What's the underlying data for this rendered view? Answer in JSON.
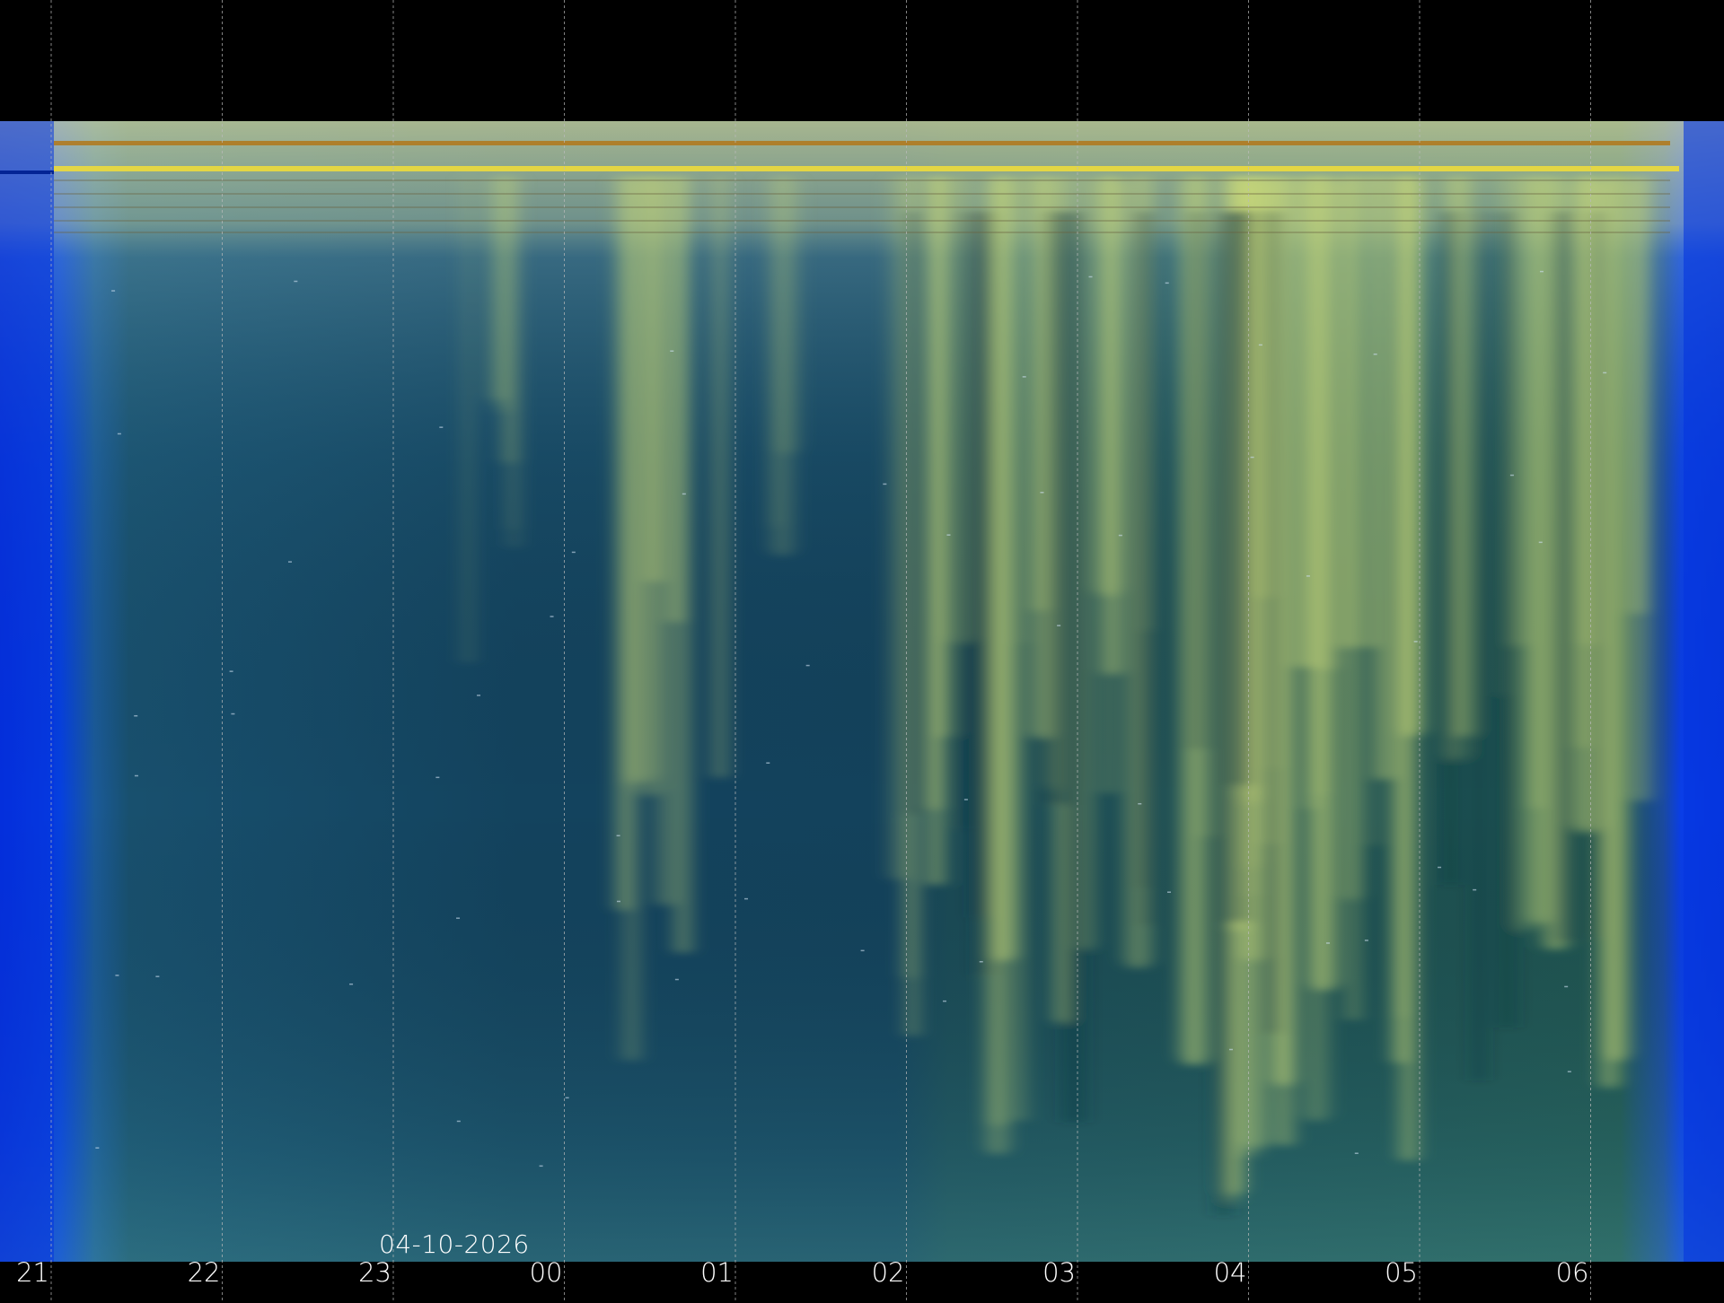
{
  "date_label": "04-10-2026",
  "hour_labels": [
    "21",
    "22",
    "23",
    "00",
    "01",
    "02",
    "03",
    "04",
    "05",
    "06"
  ],
  "colors": {
    "background": "#000000",
    "sky_dark": "#12405a",
    "sky_blue_edge": "#0535e0",
    "aurora": "#c8d878",
    "band_orange": "#b07a20",
    "band_yellow": "#e8d840",
    "gridline": "#bbbbbb",
    "label": "#ffffff"
  }
}
